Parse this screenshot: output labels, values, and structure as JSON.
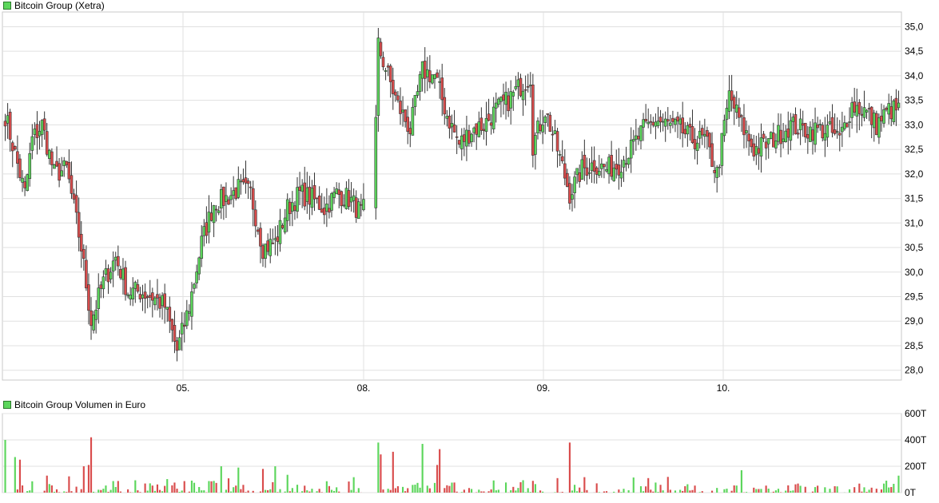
{
  "chart_data": [
    {
      "type": "candlestick",
      "title": "Bitcoin Group (Xetra)",
      "x_tick_labels": [
        "05.",
        "08.",
        "09.",
        "10."
      ],
      "y_tick_labels": [
        "28,0",
        "28,5",
        "29,0",
        "29,5",
        "30,0",
        "30,5",
        "31,0",
        "31,5",
        "32,0",
        "32,5",
        "33,0",
        "33,5",
        "34,0",
        "34,5",
        "35,0"
      ],
      "ylim": [
        27.8,
        35.3
      ],
      "grid": true,
      "legend_position": "top-left",
      "colors": {
        "up": "#5cd65c",
        "down": "#d94c4c",
        "grid": "#e0e0e0"
      },
      "anchors": [
        [
          0,
          33.2
        ],
        [
          4,
          32.4
        ],
        [
          8,
          31.6
        ],
        [
          11,
          32.7
        ],
        [
          15,
          33.0
        ],
        [
          20,
          32.0
        ],
        [
          25,
          32.1
        ],
        [
          31,
          30.5
        ],
        [
          35,
          29.0
        ],
        [
          40,
          29.8
        ],
        [
          45,
          30.3
        ],
        [
          50,
          29.6
        ],
        [
          55,
          29.6
        ],
        [
          60,
          29.5
        ],
        [
          65,
          29.3
        ],
        [
          70,
          28.4
        ],
        [
          75,
          29.3
        ],
        [
          80,
          30.6
        ],
        [
          85,
          31.4
        ],
        [
          90,
          31.5
        ],
        [
          95,
          31.7
        ],
        [
          100,
          31.6
        ],
        [
          105,
          30.5
        ],
        [
          110,
          30.6
        ],
        [
          115,
          31.3
        ],
        [
          120,
          31.6
        ],
        [
          125,
          31.5
        ],
        [
          130,
          31.3
        ],
        [
          135,
          31.6
        ],
        [
          140,
          31.5
        ],
        [
          145,
          31.2
        ],
        [
          150,
          31.5
        ],
        [
          152,
          34.6
        ],
        [
          160,
          33.4
        ],
        [
          165,
          32.9
        ],
        [
          170,
          34.1
        ],
        [
          175,
          34.0
        ],
        [
          180,
          33.2
        ],
        [
          185,
          32.6
        ],
        [
          190,
          32.9
        ],
        [
          195,
          33.0
        ],
        [
          200,
          33.3
        ],
        [
          205,
          33.5
        ],
        [
          210,
          33.8
        ],
        [
          214,
          34.0
        ],
        [
          215,
          32.6
        ],
        [
          220,
          33.3
        ],
        [
          225,
          32.5
        ],
        [
          230,
          31.6
        ],
        [
          235,
          32.1
        ],
        [
          240,
          32.2
        ],
        [
          245,
          32.1
        ],
        [
          250,
          32.2
        ],
        [
          255,
          32.5
        ],
        [
          260,
          32.9
        ],
        [
          265,
          33.1
        ],
        [
          270,
          33.0
        ],
        [
          275,
          32.9
        ],
        [
          280,
          32.7
        ],
        [
          285,
          32.7
        ],
        [
          290,
          32.0
        ],
        [
          295,
          33.6
        ],
        [
          300,
          33.0
        ],
        [
          305,
          32.5
        ],
        [
          310,
          32.6
        ],
        [
          315,
          32.8
        ],
        [
          320,
          33.0
        ],
        [
          325,
          32.9
        ],
        [
          330,
          32.9
        ],
        [
          335,
          32.9
        ],
        [
          340,
          32.7
        ],
        [
          342,
          33.0
        ],
        [
          345,
          33.4
        ],
        [
          350,
          33.3
        ],
        [
          355,
          33.0
        ],
        [
          360,
          33.3
        ],
        [
          364,
          33.3
        ]
      ],
      "candle_count": 365
    },
    {
      "type": "bar",
      "title": "Bitcoin Group Volumen in Euro",
      "y_tick_labels": [
        "0T",
        "200T",
        "400T",
        "600T"
      ],
      "ylim": [
        0,
        600000
      ],
      "tall_bars": [
        [
          0,
          400000
        ],
        [
          4,
          270000
        ],
        [
          6,
          250000
        ],
        [
          35,
          420000
        ],
        [
          34,
          210000
        ],
        [
          32,
          200000
        ],
        [
          88,
          200000
        ],
        [
          95,
          190000
        ],
        [
          152,
          380000
        ],
        [
          153,
          290000
        ],
        [
          158,
          310000
        ],
        [
          170,
          370000
        ],
        [
          177,
          330000
        ],
        [
          230,
          380000
        ],
        [
          105,
          180000
        ],
        [
          110,
          200000
        ],
        [
          176,
          210000
        ],
        [
          300,
          170000
        ]
      ]
    }
  ],
  "legend": {
    "price_label": "Bitcoin Group (Xetra)",
    "volume_label": "Bitcoin Group Volumen in Euro"
  }
}
